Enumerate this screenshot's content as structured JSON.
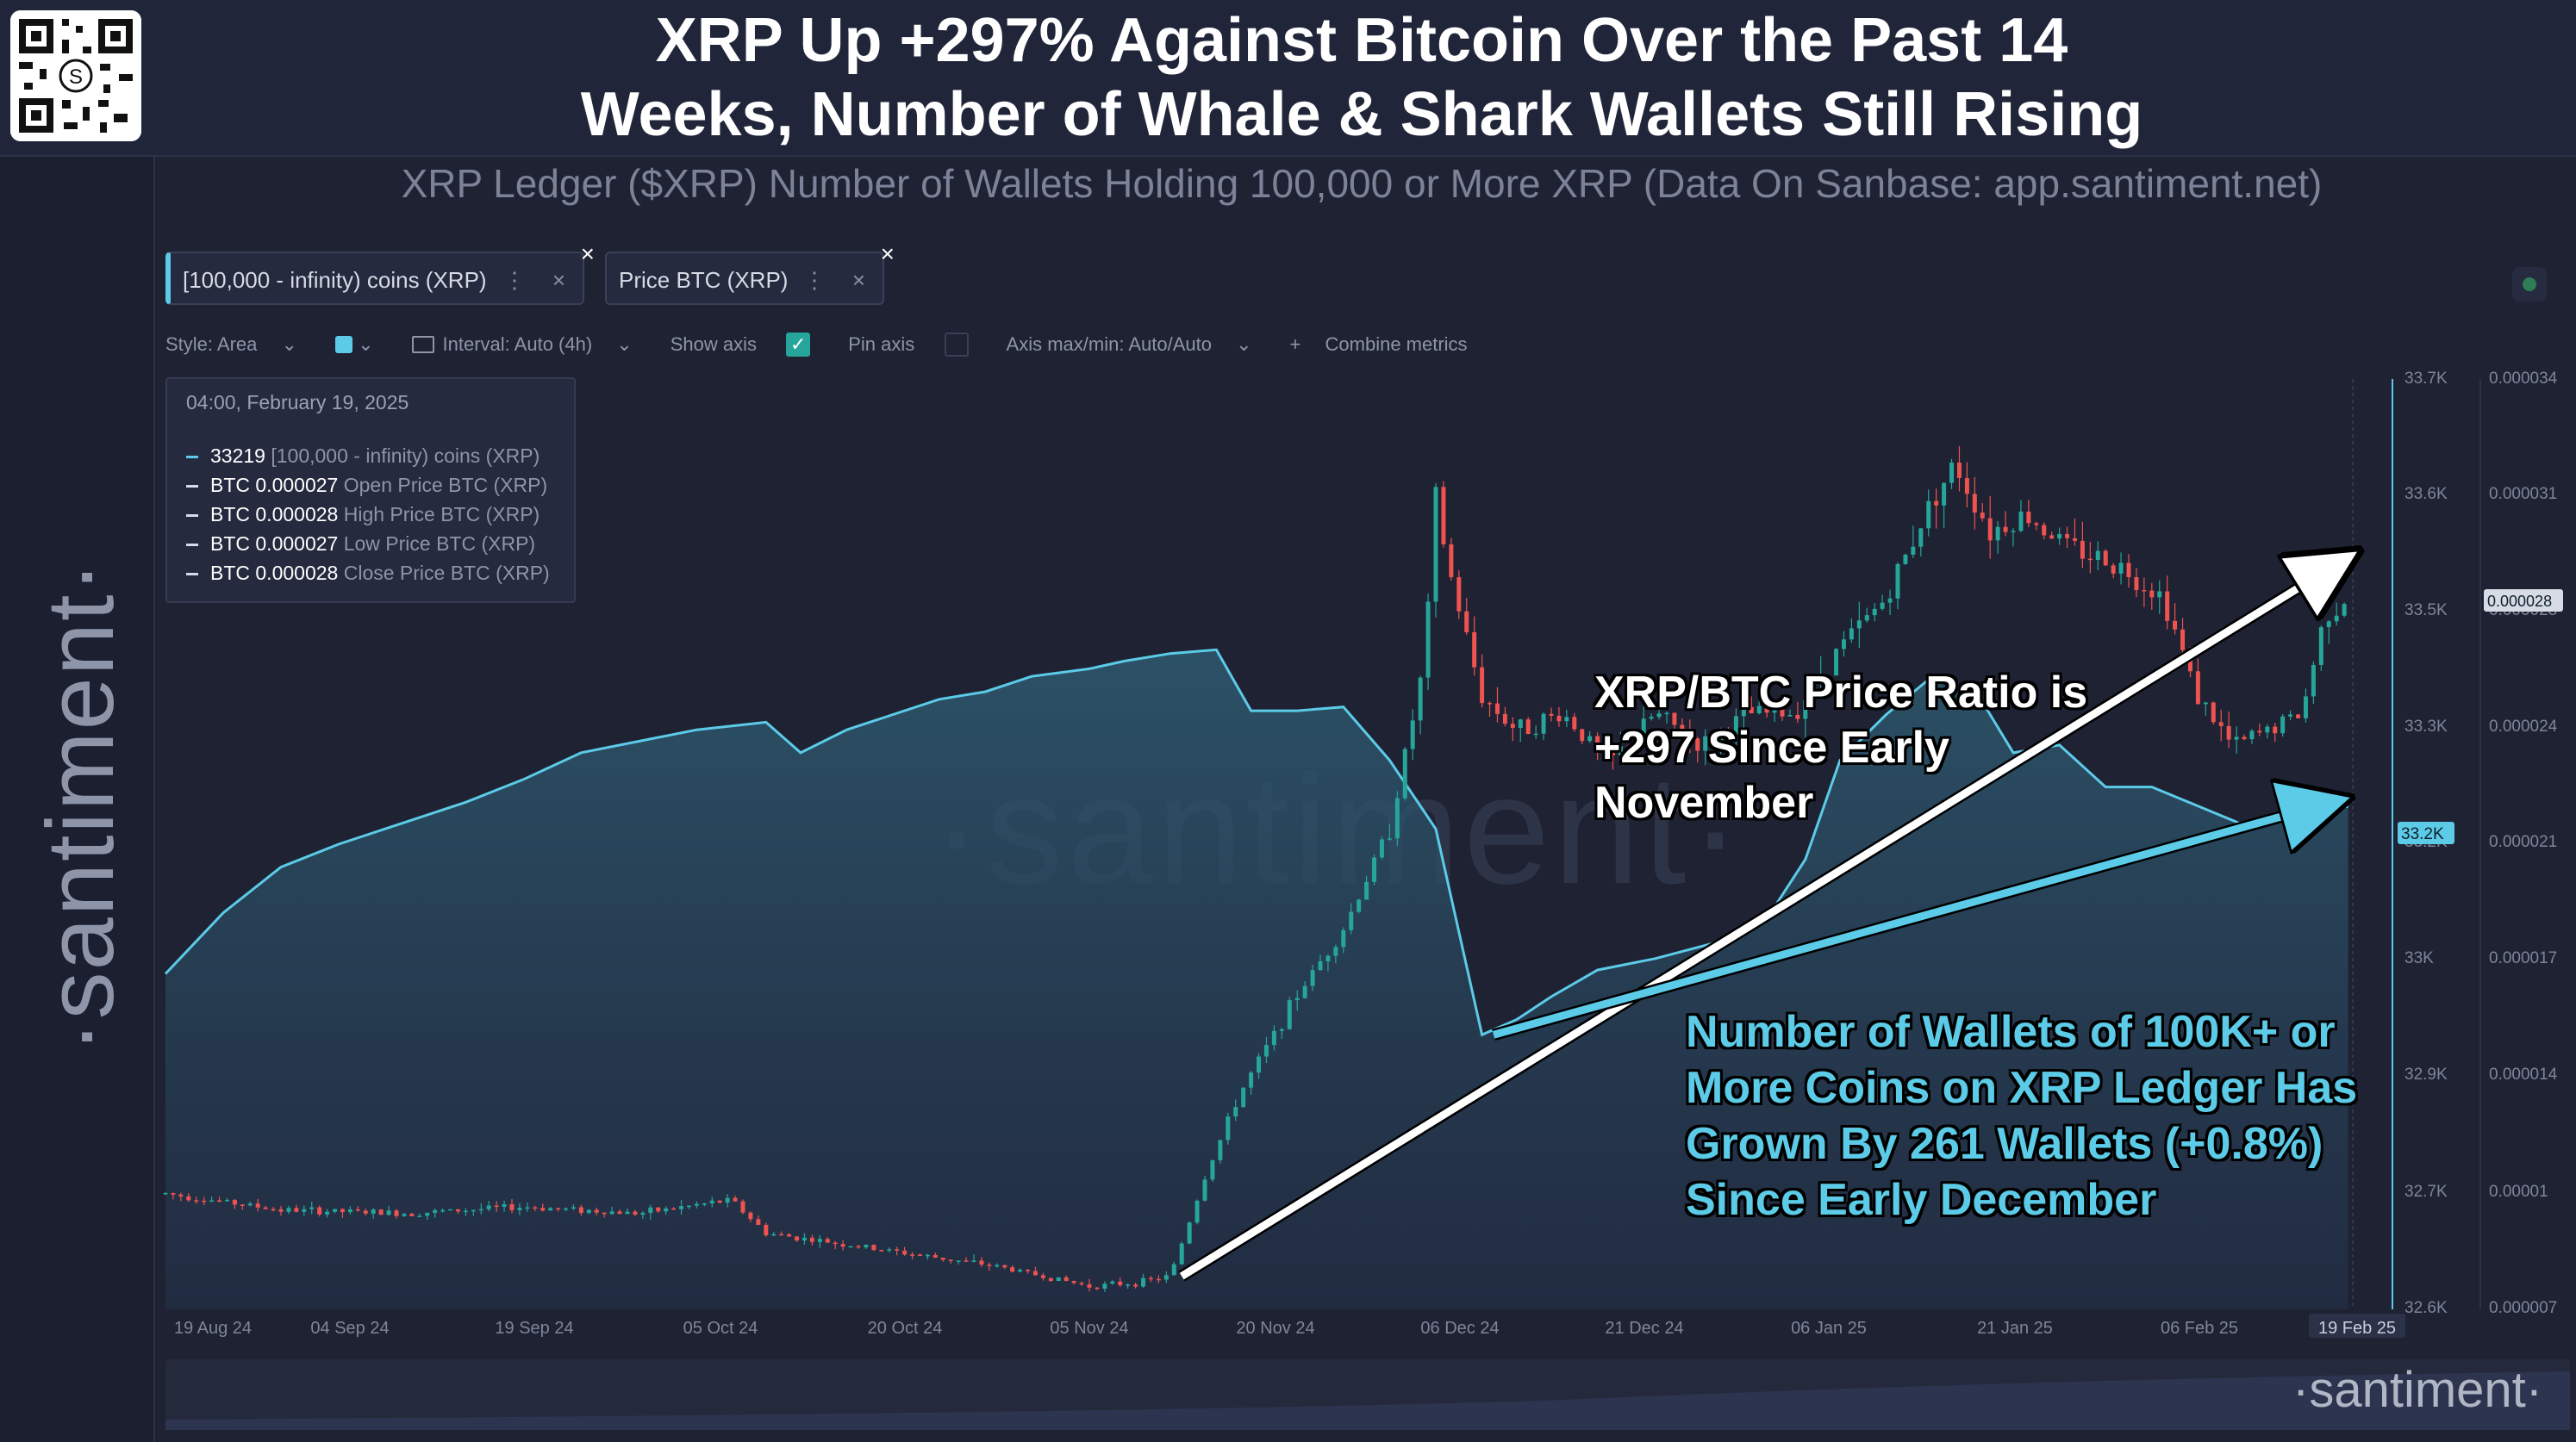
{
  "header": {
    "title_line1": "XRP Up +297% Against Bitcoin Over the Past 14",
    "title_line2": "Weeks, Number of Whale & Shark Wallets Still Rising",
    "subtitle": "XRP Ledger ($XRP) Number of Wallets Holding 100,000 or More XRP (Data On Sanbase: app.santiment.net)"
  },
  "brand": {
    "vertical": "·santiment·",
    "bottom": "·santiment·",
    "watermark": "·santiment·"
  },
  "metric_chips": [
    {
      "label": "[100,000 - infinity) coins (XRP)",
      "dots": "⋮",
      "close": "×",
      "remove": "×"
    },
    {
      "label": "Price BTC (XRP)",
      "dots": "⋮",
      "close": "×",
      "remove": "×"
    }
  ],
  "toolbar": {
    "style": "Style: Area",
    "interval": "Interval: Auto (4h)",
    "show_axis": "Show axis",
    "pin_axis": "Pin axis",
    "axis_maxmin": "Axis max/min: Auto/Auto",
    "combine": "Combine metrics",
    "chevron": "⌄",
    "plus": "+",
    "check": "✓"
  },
  "tooltip": {
    "date": "04:00, February 19, 2025",
    "rows": [
      {
        "value": "33219",
        "label": "[100,000  - infinity) coins (XRP)",
        "color": "#5ccbe8"
      },
      {
        "value": "BTC 0.000027",
        "label": "Open Price BTC (XRP)",
        "color": "#d6dbe6"
      },
      {
        "value": "BTC 0.000028",
        "label": "High Price BTC (XRP)",
        "color": "#d6dbe6"
      },
      {
        "value": "BTC 0.000027",
        "label": "Low Price BTC (XRP)",
        "color": "#d6dbe6"
      },
      {
        "value": "BTC 0.000028",
        "label": "Close Price BTC (XRP)",
        "color": "#d6dbe6"
      }
    ]
  },
  "annotations": {
    "price_lines": [
      "XRP/BTC Price Ratio is",
      "+297 Since Early",
      "November"
    ],
    "wallet_lines": [
      "Number of Wallets of 100K+ or",
      "More Coins on XRP Ledger Has",
      "Grown By 261 Wallets (+0.8%)",
      "Since Early December"
    ]
  },
  "colors": {
    "background": "#1e2233",
    "wallet_line": "#5ccbe8",
    "candle_up": "#26a69a",
    "candle_down": "#ef5350",
    "axis_text": "#7f869a"
  },
  "chart_data": {
    "type": "area",
    "title": "",
    "x_ticks": [
      "19 Aug 24",
      "04 Sep 24",
      "19 Sep 24",
      "05 Oct 24",
      "20 Oct 24",
      "05 Nov 24",
      "20 Nov 24",
      "06 Dec 24",
      "21 Dec 24",
      "06 Jan 25",
      "21 Jan 25",
      "06 Feb 25",
      "19 Feb 25"
    ],
    "y_left": {
      "label": "[100,000 - infinity) coins (XRP)",
      "ticks": [
        "33.7K",
        "33.6K",
        "33.5K",
        "33.3K",
        "33.2K",
        "33K",
        "32.9K",
        "32.7K",
        "32.6K"
      ],
      "ylim": [
        32560,
        33780
      ],
      "current": "33.2K"
    },
    "y_right": {
      "label": "Price BTC (XRP)",
      "ticks": [
        "0.000034",
        "0.000031",
        "0.000028",
        "0.000024",
        "0.000021",
        "0.000017",
        "0.000014",
        "0.00001",
        "0.000007"
      ],
      "ylim": [
        6.5e-06,
        3.46e-05
      ],
      "current": "0.000028"
    },
    "series": [
      {
        "name": "[100,000 - infinity) coins (XRP)",
        "kind": "area",
        "x": [
          "2024-08-14",
          "2024-08-19",
          "2024-08-24",
          "2024-08-29",
          "2024-09-04",
          "2024-09-09",
          "2024-09-14",
          "2024-09-19",
          "2024-09-24",
          "2024-09-29",
          "2024-10-05",
          "2024-10-08",
          "2024-10-12",
          "2024-10-16",
          "2024-10-20",
          "2024-10-24",
          "2024-10-28",
          "2024-11-02",
          "2024-11-05",
          "2024-11-09",
          "2024-11-13",
          "2024-11-16",
          "2024-11-20",
          "2024-11-24",
          "2024-11-28",
          "2024-12-02",
          "2024-12-06",
          "2024-12-09",
          "2024-12-12",
          "2024-12-16",
          "2024-12-21",
          "2024-12-26",
          "2024-12-31",
          "2025-01-03",
          "2025-01-06",
          "2025-01-10",
          "2025-01-14",
          "2025-01-18",
          "2025-01-21",
          "2025-01-25",
          "2025-01-29",
          "2025-02-02",
          "2025-02-06",
          "2025-02-10",
          "2025-02-14",
          "2025-02-17",
          "2025-02-19"
        ],
        "y": [
          33000,
          33080,
          33140,
          33170,
          33200,
          33225,
          33255,
          33290,
          33305,
          33320,
          33330,
          33290,
          33320,
          33340,
          33360,
          33370,
          33390,
          33400,
          33410,
          33420,
          33425,
          33345,
          33345,
          33350,
          33280,
          33190,
          32920,
          32940,
          32970,
          33005,
          33020,
          33040,
          33080,
          33150,
          33280,
          33340,
          33390,
          33365,
          33290,
          33300,
          33245,
          33245,
          33220,
          33195,
          33210,
          33225,
          33219
        ]
      },
      {
        "name": "Price BTC (XRP)",
        "kind": "candlestick",
        "x": [
          "2024-08-14",
          "2024-08-24",
          "2024-09-04",
          "2024-09-14",
          "2024-09-24",
          "2024-10-02",
          "2024-10-05",
          "2024-10-15",
          "2024-10-25",
          "2024-11-02",
          "2024-11-06",
          "2024-11-09",
          "2024-11-12",
          "2024-11-15",
          "2024-11-20",
          "2024-11-24",
          "2024-11-28",
          "2024-12-01",
          "2024-12-02",
          "2024-12-03",
          "2024-12-06",
          "2024-12-09",
          "2024-12-13",
          "2024-12-17",
          "2024-12-21",
          "2024-12-25",
          "2024-12-29",
          "2025-01-02",
          "2025-01-06",
          "2025-01-10",
          "2025-01-14",
          "2025-01-16",
          "2025-01-19",
          "2025-01-22",
          "2025-01-26",
          "2025-01-30",
          "2025-02-03",
          "2025-02-06",
          "2025-02-09",
          "2025-02-12",
          "2025-02-15",
          "2025-02-17",
          "2025-02-19"
        ],
        "y": [
          1e-05,
          9.5e-06,
          9.4e-06,
          9.6e-06,
          9.4e-06,
          9.8e-06,
          8.8e-06,
          8.3e-06,
          7.8e-06,
          7.2e-06,
          7.3e-06,
          7.5e-06,
          1.05e-05,
          1.3e-05,
          1.6e-05,
          1.8e-05,
          2.1e-05,
          2.6e-05,
          3.1e-05,
          2.9e-05,
          2.5e-05,
          2.4e-05,
          2.45e-05,
          2.3e-05,
          2.45e-05,
          2.35e-05,
          2.45e-05,
          2.45e-05,
          2.65e-05,
          2.8e-05,
          3.1e-05,
          3.2e-05,
          3e-05,
          3.05e-05,
          2.95e-05,
          2.9e-05,
          2.8e-05,
          2.5e-05,
          2.35e-05,
          2.4e-05,
          2.45e-05,
          2.75e-05,
          2.8e-05
        ]
      }
    ],
    "grid": false,
    "legend": "top-left"
  }
}
